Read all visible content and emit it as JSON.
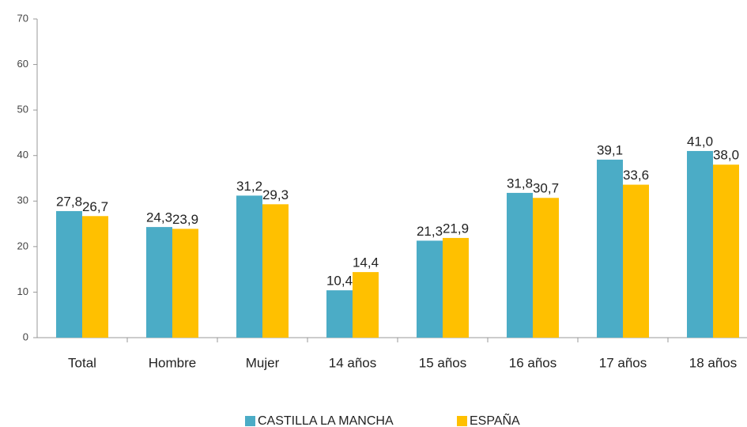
{
  "chart_data": {
    "type": "bar",
    "categories": [
      "Total",
      "Hombre",
      "Mujer",
      "14 años",
      "15 años",
      "16 años",
      "17 años",
      "18 años"
    ],
    "series": [
      {
        "name": "CASTILLA LA MANCHA",
        "color": "#4bacc6",
        "values": [
          27.8,
          24.3,
          31.2,
          10.4,
          21.3,
          31.8,
          39.1,
          41.0
        ],
        "value_labels": [
          "27,8",
          "24,3",
          "31,2",
          "10,4",
          "21,3",
          "31,8",
          "39,1",
          "41,0"
        ]
      },
      {
        "name": "ESPAÑA",
        "color": "#ffc000",
        "values": [
          26.7,
          23.9,
          29.3,
          14.4,
          21.9,
          30.7,
          33.6,
          38.0
        ],
        "value_labels": [
          "26,7",
          "23,9",
          "29,3",
          "14,4",
          "21,9",
          "30,7",
          "33,6",
          "38,0"
        ]
      }
    ],
    "ylim": [
      0,
      70
    ],
    "yticks": [
      0,
      10,
      20,
      30,
      40,
      50,
      60,
      70
    ],
    "grid": false,
    "legend": "bottom"
  }
}
